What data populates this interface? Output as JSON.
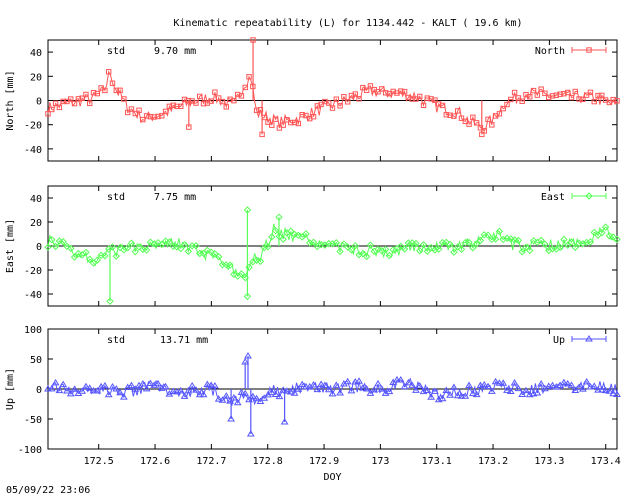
{
  "title": "Kinematic repeatability (L) for 1134.442 - KALT  ( 19.6 km)",
  "timestamp": "05/09/22 23:06",
  "chart_data": [
    {
      "type": "line",
      "id": "north",
      "ylabel": "North [mm]",
      "ylim": [
        -50,
        50
      ],
      "yticks": [
        -40,
        -20,
        0,
        20,
        40
      ],
      "legend": "North",
      "legend_position": "top-right",
      "std_label": "std",
      "std_value": "9.70 mm",
      "color": "#ff5555",
      "marker": "square",
      "series": [
        {
          "name": "North",
          "x": [
            172.41,
            172.45,
            172.49,
            172.51,
            172.52,
            172.53,
            172.55,
            172.58,
            172.62,
            172.66,
            172.7,
            172.74,
            172.76,
            172.77,
            172.78,
            172.8,
            172.82,
            172.86,
            172.9,
            172.94,
            172.98,
            173.02,
            173.06,
            173.1,
            173.14,
            173.16,
            173.18,
            173.2,
            173.22,
            173.26,
            173.3,
            173.34,
            173.38,
            173.42
          ],
          "y": [
            -6,
            -2,
            2,
            8,
            24,
            10,
            -5,
            -15,
            -10,
            -2,
            3,
            -4,
            15,
            20,
            -10,
            -14,
            -18,
            -14,
            -6,
            0,
            8,
            6,
            4,
            -5,
            -10,
            -18,
            -22,
            -16,
            -2,
            6,
            4,
            3,
            2,
            -4
          ]
        }
      ],
      "spikes": [
        {
          "x": 172.774,
          "y": 50
        },
        {
          "x": 172.79,
          "y": -28
        },
        {
          "x": 173.18,
          "y": -28
        },
        {
          "x": 172.66,
          "y": -22
        }
      ]
    },
    {
      "type": "line",
      "id": "east",
      "ylabel": "East [mm]",
      "ylim": [
        -50,
        50
      ],
      "yticks": [
        -40,
        -20,
        0,
        20,
        40
      ],
      "legend": "East",
      "legend_position": "top-right",
      "std_label": "std",
      "std_value": "7.75 mm",
      "color": "#55ff55",
      "marker": "diamond",
      "series": [
        {
          "name": "East",
          "x": [
            172.41,
            172.44,
            172.47,
            172.5,
            172.53,
            172.56,
            172.6,
            172.64,
            172.68,
            172.71,
            172.73,
            172.75,
            172.76,
            172.77,
            172.79,
            172.81,
            172.83,
            172.86,
            172.9,
            172.94,
            172.98,
            173.02,
            173.06,
            173.1,
            173.14,
            173.18,
            173.2,
            173.24,
            173.28,
            173.32,
            173.36,
            173.4,
            173.42
          ],
          "y": [
            4,
            0,
            -8,
            -12,
            -4,
            0,
            2,
            4,
            -6,
            -12,
            -16,
            -26,
            -30,
            -12,
            -8,
            14,
            10,
            6,
            2,
            -2,
            -4,
            -6,
            0,
            -2,
            0,
            4,
            10,
            0,
            0,
            2,
            4,
            12,
            6
          ]
        }
      ],
      "spikes": [
        {
          "x": 172.52,
          "y": -46
        },
        {
          "x": 172.764,
          "y": 30
        },
        {
          "x": 172.764,
          "y": -42
        },
        {
          "x": 172.82,
          "y": 24
        }
      ]
    },
    {
      "type": "line",
      "id": "up",
      "xlabel": "DOY",
      "ylabel": "Up [mm]",
      "ylim": [
        -100,
        100
      ],
      "yticks": [
        -100,
        -50,
        0,
        50,
        100
      ],
      "xlim": [
        172.41,
        173.42
      ],
      "xticks": [
        172.5,
        172.6,
        172.7,
        172.8,
        172.9,
        173,
        173.1,
        173.2,
        173.3,
        173.4
      ],
      "legend": "Up",
      "legend_position": "top-right",
      "std_label": "std",
      "std_value": "13.71 mm",
      "color": "#5555ff",
      "marker": "triangle",
      "series": [
        {
          "name": "Up",
          "x": [
            172.41,
            172.45,
            172.5,
            172.55,
            172.6,
            172.65,
            172.7,
            172.73,
            172.76,
            172.78,
            172.8,
            172.83,
            172.86,
            172.9,
            172.95,
            173.0,
            173.05,
            173.1,
            173.15,
            173.2,
            173.25,
            173.3,
            173.35,
            173.4,
            173.42
          ],
          "y": [
            10,
            -5,
            0,
            -5,
            5,
            -5,
            0,
            -20,
            -10,
            -25,
            0,
            -10,
            5,
            0,
            5,
            0,
            10,
            -10,
            -5,
            5,
            0,
            0,
            5,
            5,
            0
          ]
        }
      ],
      "spikes": [
        {
          "x": 172.765,
          "y": 55
        },
        {
          "x": 172.77,
          "y": -75
        },
        {
          "x": 172.735,
          "y": -50
        },
        {
          "x": 172.83,
          "y": -55
        },
        {
          "x": 172.76,
          "y": 45
        }
      ]
    }
  ]
}
